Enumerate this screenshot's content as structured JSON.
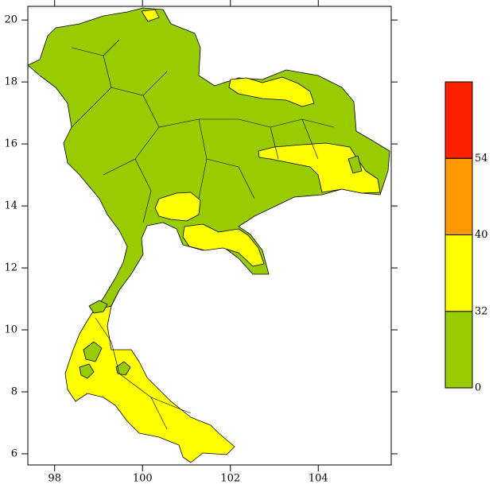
{
  "map": {
    "xlim": [
      97.39,
      105.66
    ],
    "ylim": [
      5.64,
      20.44
    ],
    "xticks": [
      98,
      100,
      102,
      104
    ],
    "yticks": [
      6,
      8,
      10,
      12,
      14,
      16,
      18,
      20
    ],
    "colorbar": {
      "levels": [
        0,
        32,
        40,
        54
      ],
      "colors": [
        "#99cc00",
        "#ffff00",
        "#ff9900",
        "#ff2000"
      ]
    }
  }
}
